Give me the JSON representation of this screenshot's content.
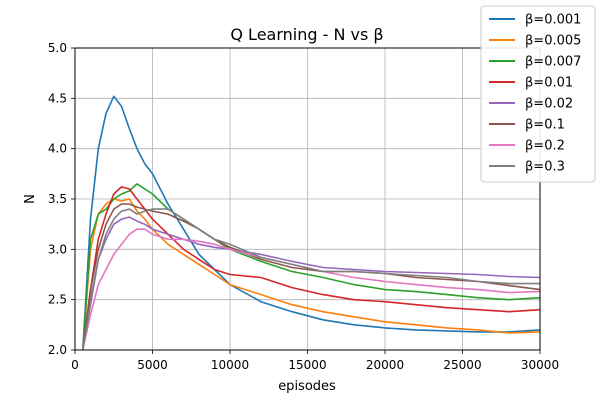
{
  "chart_data": {
    "type": "line",
    "title": "Q Learning - N vs β",
    "xlabel": "episodes",
    "ylabel": "N",
    "xlim": [
      0,
      30000
    ],
    "ylim": [
      2.0,
      5.0
    ],
    "xticks": [
      0,
      5000,
      10000,
      15000,
      20000,
      25000,
      30000
    ],
    "xtick_labels": [
      "0",
      "5000",
      "10000",
      "15000",
      "20000",
      "25000",
      "30000"
    ],
    "yticks": [
      2.0,
      2.5,
      3.0,
      3.5,
      4.0,
      4.5,
      5.0
    ],
    "ytick_labels": [
      "2.0",
      "2.5",
      "3.0",
      "3.5",
      "4.0",
      "4.5",
      "5.0"
    ],
    "grid": true,
    "legend_position": "top-right",
    "series": [
      {
        "name": "β=0.001",
        "color": "#1f77b4",
        "x": [
          500,
          1000,
          1500,
          2000,
          2500,
          3000,
          3500,
          4000,
          4500,
          5000,
          6000,
          7000,
          8000,
          9000,
          10000,
          12000,
          14000,
          16000,
          18000,
          20000,
          22000,
          24000,
          26000,
          28000,
          30000
        ],
        "y": [
          2.0,
          3.3,
          4.0,
          4.35,
          4.52,
          4.42,
          4.2,
          4.0,
          3.85,
          3.75,
          3.45,
          3.2,
          2.95,
          2.8,
          2.65,
          2.48,
          2.38,
          2.3,
          2.25,
          2.22,
          2.2,
          2.19,
          2.18,
          2.18,
          2.2
        ]
      },
      {
        "name": "β=0.005",
        "color": "#ff7f0e",
        "x": [
          500,
          1000,
          1500,
          2000,
          2500,
          3000,
          3500,
          4000,
          4500,
          5000,
          6000,
          7000,
          8000,
          9000,
          10000,
          12000,
          14000,
          16000,
          18000,
          20000,
          22000,
          24000,
          26000,
          28000,
          30000
        ],
        "y": [
          2.0,
          3.0,
          3.35,
          3.45,
          3.5,
          3.48,
          3.5,
          3.38,
          3.3,
          3.2,
          3.05,
          2.95,
          2.85,
          2.75,
          2.65,
          2.55,
          2.45,
          2.38,
          2.33,
          2.28,
          2.25,
          2.22,
          2.2,
          2.17,
          2.18
        ]
      },
      {
        "name": "β=0.007",
        "color": "#2ca02c",
        "x": [
          500,
          1000,
          1500,
          2000,
          2500,
          3000,
          3500,
          4000,
          4500,
          5000,
          6000,
          7000,
          8000,
          9000,
          10000,
          12000,
          14000,
          16000,
          18000,
          20000,
          22000,
          24000,
          26000,
          28000,
          30000
        ],
        "y": [
          2.0,
          3.1,
          3.35,
          3.4,
          3.5,
          3.55,
          3.58,
          3.65,
          3.6,
          3.55,
          3.4,
          3.3,
          3.2,
          3.1,
          3.0,
          2.88,
          2.78,
          2.72,
          2.65,
          2.6,
          2.58,
          2.55,
          2.52,
          2.5,
          2.52
        ]
      },
      {
        "name": "β=0.01",
        "color": "#d62728",
        "x": [
          500,
          1000,
          1500,
          2000,
          2500,
          3000,
          3500,
          4000,
          4500,
          5000,
          6000,
          7000,
          8000,
          9000,
          10000,
          12000,
          14000,
          16000,
          18000,
          20000,
          22000,
          24000,
          26000,
          28000,
          30000
        ],
        "y": [
          2.0,
          2.6,
          3.1,
          3.35,
          3.55,
          3.62,
          3.6,
          3.5,
          3.4,
          3.3,
          3.15,
          3.0,
          2.9,
          2.8,
          2.75,
          2.72,
          2.62,
          2.55,
          2.5,
          2.48,
          2.45,
          2.42,
          2.4,
          2.38,
          2.4
        ]
      },
      {
        "name": "β=0.02",
        "color": "#9467bd",
        "x": [
          500,
          1000,
          1500,
          2000,
          2500,
          3000,
          3500,
          4000,
          4500,
          5000,
          6000,
          7000,
          8000,
          9000,
          10000,
          12000,
          14000,
          16000,
          18000,
          20000,
          22000,
          24000,
          26000,
          28000,
          30000
        ],
        "y": [
          2.0,
          2.5,
          2.9,
          3.1,
          3.25,
          3.3,
          3.32,
          3.28,
          3.25,
          3.2,
          3.15,
          3.1,
          3.05,
          3.02,
          3.0,
          2.95,
          2.88,
          2.82,
          2.8,
          2.78,
          2.77,
          2.76,
          2.75,
          2.73,
          2.72
        ]
      },
      {
        "name": "β=0.1",
        "color": "#8c564b",
        "x": [
          500,
          1000,
          1500,
          2000,
          2500,
          3000,
          3500,
          4000,
          4500,
          5000,
          6000,
          7000,
          8000,
          9000,
          10000,
          12000,
          14000,
          16000,
          18000,
          20000,
          22000,
          24000,
          26000,
          28000,
          30000
        ],
        "y": [
          2.0,
          2.6,
          3.0,
          3.25,
          3.4,
          3.45,
          3.45,
          3.42,
          3.4,
          3.38,
          3.35,
          3.28,
          3.2,
          3.1,
          3.02,
          2.9,
          2.82,
          2.78,
          2.78,
          2.76,
          2.72,
          2.7,
          2.68,
          2.64,
          2.6
        ]
      },
      {
        "name": "β=0.2",
        "color": "#e377c2",
        "x": [
          500,
          1000,
          1500,
          2000,
          2500,
          3000,
          3500,
          4000,
          4500,
          5000,
          6000,
          7000,
          8000,
          9000,
          10000,
          12000,
          14000,
          16000,
          18000,
          20000,
          22000,
          24000,
          26000,
          28000,
          30000
        ],
        "y": [
          2.0,
          2.35,
          2.65,
          2.8,
          2.95,
          3.05,
          3.15,
          3.2,
          3.2,
          3.15,
          3.1,
          3.1,
          3.08,
          3.05,
          3.0,
          2.92,
          2.85,
          2.78,
          2.72,
          2.68,
          2.65,
          2.62,
          2.6,
          2.57,
          2.58
        ]
      },
      {
        "name": "β=0.3",
        "color": "#7f7f7f",
        "x": [
          500,
          1000,
          1500,
          2000,
          2500,
          3000,
          3500,
          4000,
          4500,
          5000,
          6000,
          7000,
          8000,
          9000,
          10000,
          12000,
          14000,
          16000,
          18000,
          20000,
          22000,
          24000,
          26000,
          28000,
          30000
        ],
        "y": [
          2.0,
          2.45,
          2.9,
          3.15,
          3.3,
          3.38,
          3.4,
          3.35,
          3.38,
          3.4,
          3.4,
          3.3,
          3.2,
          3.1,
          3.05,
          2.92,
          2.85,
          2.78,
          2.78,
          2.76,
          2.74,
          2.72,
          2.68,
          2.66,
          2.66
        ]
      }
    ]
  }
}
